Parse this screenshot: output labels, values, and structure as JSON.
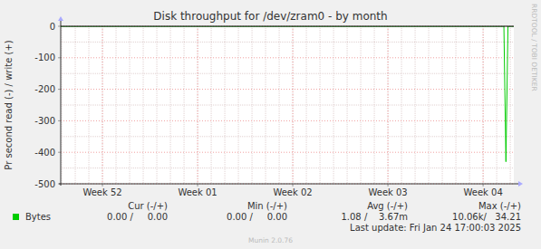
{
  "chart_data": {
    "type": "line",
    "title": "Disk throughput for /dev/zram0 - by month",
    "y_label": "Pr second read (-) / write (+)",
    "x": [
      0,
      32.6,
      32.75,
      32.9,
      33.33
    ],
    "series": [
      {
        "name": "Bytes",
        "color": "#00cc00",
        "values": [
          0,
          0,
          -430,
          0,
          0
        ]
      }
    ],
    "xlim": [
      0,
      33.33
    ],
    "xticks": [
      {
        "value": 3.07,
        "label": "Week 52"
      },
      {
        "value": 10.07,
        "label": "Week 01"
      },
      {
        "value": 17.07,
        "label": "Week 02"
      },
      {
        "value": 24.07,
        "label": "Week 03"
      },
      {
        "value": 31.07,
        "label": "Week 04"
      }
    ],
    "ylim": [
      -500,
      0
    ],
    "yticks": [
      0,
      -100,
      -200,
      -300,
      -400,
      -500
    ],
    "grid": true,
    "stats": {
      "headers": [
        "Cur (-/+)",
        "Min (-/+)",
        "Avg (-/+)",
        "Max (-/+)"
      ],
      "values": [
        "0.00 /     0.00",
        "0.00 /     0.00",
        "1.08 /    3.67m",
        "10.06k/   34.21"
      ]
    },
    "footer": "Last update: Fri Jan 24 17:00:03 2025",
    "credit": "Munin 2.0.76",
    "watermark": "RRDTOOL / TOBI OETIKER"
  }
}
